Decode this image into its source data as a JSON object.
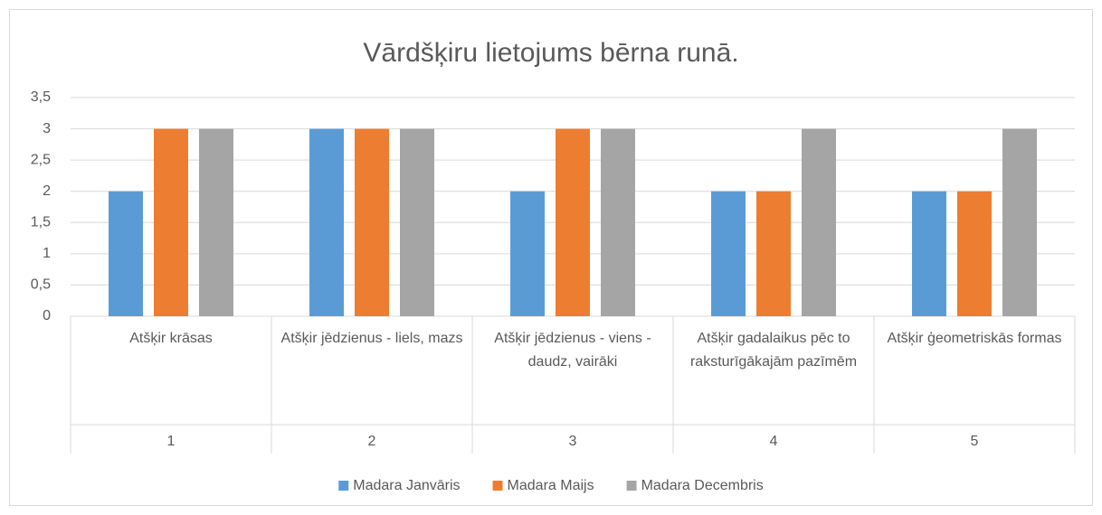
{
  "chart_data": {
    "type": "bar",
    "title": "Vārdšķiru lietojums bērna runā.",
    "categories": [
      "Atšķir krāsas",
      "Atšķir jēdzienus - liels, mazs",
      "Atšķir jēdzienus - viens - daudz, vairāki",
      "Atšķir gadalaikus pēc to raksturīgākajām pazīmēm",
      "Atšķir ģeometriskās formas"
    ],
    "group_labels": [
      "1",
      "2",
      "3",
      "4",
      "5"
    ],
    "series": [
      {
        "name": "Madara Janvāris",
        "color": "#5b9bd5",
        "values": [
          2,
          3,
          2,
          2,
          2
        ]
      },
      {
        "name": "Madara Maijs",
        "color": "#ed7d31",
        "values": [
          3,
          3,
          3,
          2,
          2
        ]
      },
      {
        "name": "Madara Decembris",
        "color": "#a5a5a5",
        "values": [
          3,
          3,
          3,
          3,
          3
        ]
      }
    ],
    "ylim": [
      0,
      3.5
    ],
    "yticks": [
      0,
      {
        "value": 0.5,
        "label": "0,5"
      },
      1,
      {
        "value": 1.5,
        "label": "1,5"
      },
      2,
      {
        "value": 2.5,
        "label": "2,5"
      },
      3,
      {
        "value": 3.5,
        "label": "3,5"
      }
    ],
    "grid": true,
    "legend": "bottom"
  }
}
